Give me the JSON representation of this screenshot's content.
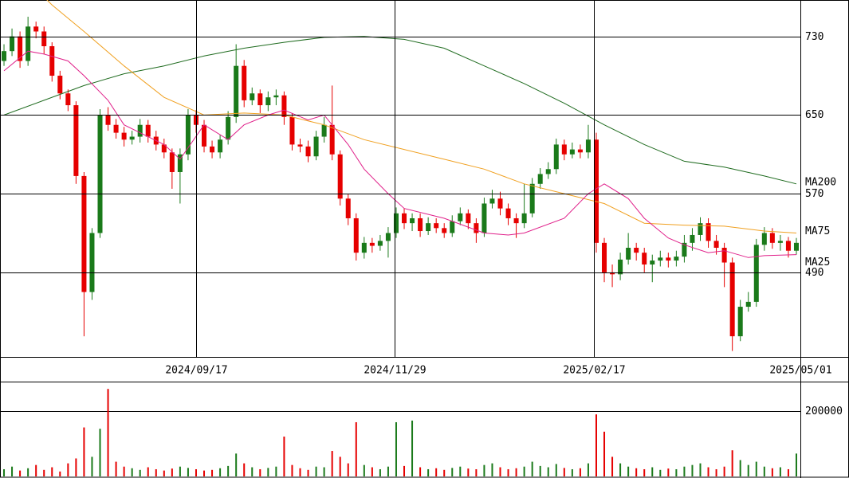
{
  "chart_data": {
    "type": "candlestick",
    "xlim": [
      0,
      100
    ],
    "xticks": [
      {
        "value": 24.5,
        "label": "2024/09/17"
      },
      {
        "value": 49.3,
        "label": "2024/11/29"
      },
      {
        "value": 74.2,
        "label": "2025/02/17"
      },
      {
        "value": 100,
        "label": "2025/05/01"
      }
    ],
    "ylim": [
      404,
      767
    ],
    "yticks": [
      490,
      570,
      650,
      730
    ],
    "grid": true,
    "up_color": "#1a7a1a",
    "down_color": "#e60000",
    "open": [
      705,
      715,
      730,
      705,
      740,
      735,
      720,
      690,
      672,
      660,
      588,
      470,
      530,
      650,
      640,
      632,
      625,
      628,
      640,
      628,
      620,
      612,
      592,
      610,
      650,
      640,
      618,
      612,
      625,
      648,
      700,
      665,
      672,
      660,
      668,
      670,
      648,
      620,
      618,
      608,
      628,
      640,
      610,
      565,
      545,
      510,
      520,
      517,
      522,
      530,
      550,
      540,
      545,
      532,
      540,
      535,
      530,
      542,
      550,
      540,
      530,
      560,
      565,
      555,
      545,
      540,
      550,
      580,
      590,
      595,
      620,
      610,
      615,
      612,
      625,
      520,
      490,
      488,
      503,
      515,
      510,
      498,
      502,
      505,
      502,
      506,
      520,
      528,
      540,
      522,
      515,
      500,
      425,
      455,
      460,
      518,
      530,
      520,
      522,
      512
    ],
    "high": [
      722,
      738,
      735,
      750,
      745,
      740,
      724,
      695,
      676,
      664,
      592,
      535,
      656,
      658,
      646,
      638,
      634,
      646,
      645,
      634,
      626,
      616,
      616,
      656,
      655,
      645,
      624,
      630,
      654,
      722,
      706,
      678,
      676,
      674,
      676,
      674,
      652,
      626,
      624,
      634,
      648,
      680,
      614,
      570,
      550,
      526,
      525,
      528,
      536,
      556,
      555,
      550,
      550,
      546,
      545,
      540,
      548,
      556,
      554,
      545,
      566,
      574,
      572,
      560,
      550,
      580,
      586,
      596,
      602,
      626,
      625,
      622,
      620,
      640,
      632,
      525,
      498,
      510,
      530,
      520,
      515,
      508,
      512,
      510,
      512,
      528,
      535,
      546,
      545,
      528,
      520,
      505,
      462,
      470,
      524,
      536,
      535,
      528,
      526,
      525
    ],
    "low": [
      700,
      710,
      698,
      700,
      728,
      712,
      684,
      666,
      654,
      580,
      425,
      462,
      525,
      634,
      626,
      618,
      620,
      622,
      622,
      614,
      606,
      575,
      560,
      604,
      632,
      612,
      606,
      606,
      620,
      642,
      658,
      660,
      652,
      654,
      660,
      640,
      614,
      612,
      602,
      604,
      622,
      604,
      558,
      538,
      502,
      504,
      510,
      512,
      505,
      525,
      534,
      532,
      526,
      528,
      530,
      525,
      526,
      538,
      534,
      520,
      526,
      555,
      548,
      538,
      525,
      535,
      546,
      575,
      585,
      590,
      604,
      606,
      606,
      606,
      510,
      480,
      475,
      482,
      498,
      502,
      490,
      480,
      496,
      495,
      496,
      500,
      512,
      522,
      515,
      508,
      475,
      410,
      420,
      450,
      455,
      512,
      514,
      512,
      505,
      508
    ],
    "close": [
      715,
      730,
      705,
      740,
      735,
      720,
      690,
      672,
      660,
      588,
      470,
      530,
      650,
      640,
      632,
      625,
      628,
      640,
      628,
      620,
      612,
      592,
      610,
      650,
      640,
      618,
      612,
      625,
      648,
      700,
      665,
      672,
      660,
      668,
      670,
      648,
      620,
      618,
      608,
      628,
      640,
      610,
      565,
      545,
      510,
      520,
      517,
      522,
      530,
      550,
      540,
      545,
      532,
      540,
      535,
      530,
      542,
      550,
      540,
      530,
      560,
      565,
      555,
      545,
      540,
      550,
      580,
      590,
      595,
      620,
      610,
      615,
      612,
      625,
      520,
      490,
      488,
      503,
      515,
      510,
      498,
      502,
      505,
      502,
      506,
      520,
      528,
      540,
      522,
      515,
      500,
      425,
      455,
      460,
      518,
      530,
      520,
      522,
      512,
      520
    ],
    "volume": [
      22000,
      30000,
      18000,
      25000,
      35000,
      20000,
      28000,
      15000,
      40000,
      55000,
      150000,
      60000,
      146000,
      268000,
      45000,
      30000,
      25000,
      20000,
      28000,
      22000,
      18000,
      24000,
      30000,
      26000,
      22000,
      18000,
      20000,
      25000,
      32000,
      70000,
      40000,
      28000,
      22000,
      26000,
      30000,
      122000,
      35000,
      25000,
      20000,
      30000,
      28000,
      78000,
      60000,
      40000,
      166000,
      35000,
      28000,
      22000,
      30000,
      166000,
      32000,
      171000,
      28000,
      22000,
      25000,
      20000,
      26000,
      30000,
      24000,
      22000,
      35000,
      40000,
      28000,
      22000,
      25000,
      30000,
      45000,
      32000,
      28000,
      38000,
      26000,
      22000,
      25000,
      40000,
      190000,
      137000,
      60000,
      40000,
      30000,
      25000,
      22000,
      28000,
      20000,
      24000,
      22000,
      30000,
      35000,
      40000,
      28000,
      22000,
      30000,
      80000,
      50000,
      35000,
      45000,
      30000,
      25000,
      28000,
      22000,
      70000
    ],
    "volume_ylim": [
      0,
      288000
    ],
    "volume_yticks": [
      200000
    ],
    "moving_averages": [
      {
        "name": "MA200",
        "color": "#1f6b1f",
        "x": [
          0.5,
          5.5,
          10.5,
          15.5,
          20.5,
          25.5,
          30.5,
          35.5,
          40.5,
          45.5,
          50.5,
          55.5,
          60.5,
          65.5,
          70.5,
          75.5,
          80.5,
          85.5,
          90.5,
          95.5,
          99.5
        ],
        "values": [
          650,
          665,
          680,
          692,
          700,
          710,
          718,
          724,
          729,
          730,
          727,
          718,
          700,
          682,
          662,
          640,
          620,
          603,
          597,
          588,
          580
        ]
      },
      {
        "name": "MA75",
        "color": "#f0a020",
        "x": [
          5.5,
          6.5,
          10.5,
          15.5,
          20.5,
          25.5,
          30.5,
          35.5,
          40.5,
          45.5,
          50.5,
          55.5,
          60.5,
          65.5,
          70.5,
          75.5,
          80.5,
          85.5,
          90.5,
          95.5,
          99.5
        ],
        "values": [
          770,
          762,
          735,
          700,
          668,
          650,
          652,
          650,
          640,
          625,
          615,
          605,
          595,
          580,
          570,
          560,
          540,
          538,
          537,
          532,
          530
        ]
      },
      {
        "name": "MA25",
        "color": "#e0208a",
        "x": [
          0.5,
          3.5,
          5.5,
          8.5,
          10.5,
          13.5,
          15.5,
          20.5,
          22.5,
          25.5,
          28.5,
          30.5,
          33.5,
          35.5,
          38.5,
          40.5,
          43.5,
          45.5,
          48.5,
          50.5,
          55.5,
          60.5,
          63.5,
          65.5,
          70.5,
          73.5,
          75.5,
          78.5,
          80.5,
          83.5,
          85.5,
          88.5,
          90.5,
          93.5,
          95.5,
          99.5
        ],
        "values": [
          695,
          715,
          712,
          705,
          690,
          665,
          640,
          620,
          605,
          640,
          625,
          640,
          650,
          655,
          645,
          650,
          620,
          595,
          570,
          555,
          545,
          530,
          528,
          530,
          545,
          570,
          580,
          565,
          545,
          525,
          518,
          510,
          512,
          505,
          507,
          508
        ]
      }
    ]
  }
}
